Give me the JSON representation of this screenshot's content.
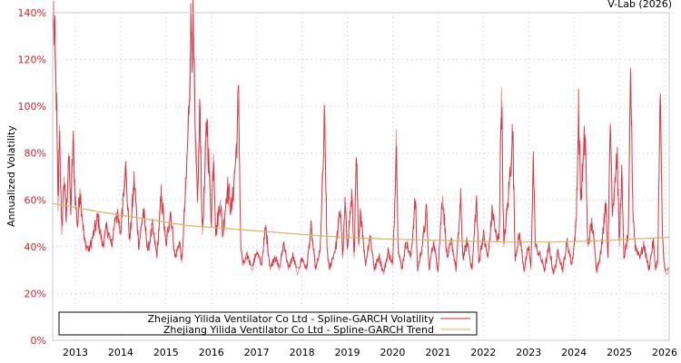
{
  "credit": "V-Lab (2026)",
  "chart_data": {
    "type": "line",
    "title": "",
    "xlabel": "",
    "ylabel": "Annualized Volatility",
    "ylim": [
      0,
      140
    ],
    "y_ticks": [
      "0%",
      "20%",
      "40%",
      "60%",
      "80%",
      "100%",
      "120%",
      "140%"
    ],
    "y_tick_values": [
      0,
      20,
      40,
      60,
      80,
      100,
      120,
      140
    ],
    "x_ticks": [
      "2013",
      "2014",
      "2015",
      "2016",
      "2017",
      "2018",
      "2019",
      "2020",
      "2021",
      "2022",
      "2023",
      "2024",
      "2025",
      "2026"
    ],
    "xlim": [
      2012.5,
      2026.1
    ],
    "grid": true,
    "legend_position": "bottom-left inside",
    "series": [
      {
        "name": "Zhejiang Yilida Ventilator Co Ltd - Spline-GARCH Volatility",
        "color": "#d62030",
        "anchors": [
          [
            2012.52,
            137
          ],
          [
            2012.55,
            120
          ],
          [
            2012.58,
            105
          ],
          [
            2012.62,
            55
          ],
          [
            2012.65,
            92
          ],
          [
            2012.7,
            45
          ],
          [
            2012.75,
            70
          ],
          [
            2012.8,
            50
          ],
          [
            2012.85,
            80
          ],
          [
            2012.9,
            55
          ],
          [
            2012.95,
            85
          ],
          [
            2013.0,
            60
          ],
          [
            2013.05,
            48
          ],
          [
            2013.1,
            65
          ],
          [
            2013.2,
            42
          ],
          [
            2013.3,
            38
          ],
          [
            2013.4,
            45
          ],
          [
            2013.5,
            52
          ],
          [
            2013.6,
            40
          ],
          [
            2013.7,
            48
          ],
          [
            2013.8,
            40
          ],
          [
            2013.9,
            55
          ],
          [
            2014.0,
            45
          ],
          [
            2014.1,
            75
          ],
          [
            2014.2,
            42
          ],
          [
            2014.3,
            68
          ],
          [
            2014.4,
            40
          ],
          [
            2014.5,
            55
          ],
          [
            2014.6,
            38
          ],
          [
            2014.7,
            48
          ],
          [
            2014.8,
            36
          ],
          [
            2014.9,
            62
          ],
          [
            2015.0,
            40
          ],
          [
            2015.1,
            55
          ],
          [
            2015.2,
            35
          ],
          [
            2015.3,
            42
          ],
          [
            2015.35,
            33
          ],
          [
            2015.45,
            70
          ],
          [
            2015.5,
            95
          ],
          [
            2015.55,
            132
          ],
          [
            2015.6,
            130
          ],
          [
            2015.65,
            80
          ],
          [
            2015.7,
            60
          ],
          [
            2015.75,
            100
          ],
          [
            2015.8,
            45
          ],
          [
            2015.85,
            65
          ],
          [
            2015.9,
            95
          ],
          [
            2016.0,
            50
          ],
          [
            2016.05,
            80
          ],
          [
            2016.1,
            45
          ],
          [
            2016.2,
            60
          ],
          [
            2016.25,
            44
          ],
          [
            2016.35,
            65
          ],
          [
            2016.45,
            55
          ],
          [
            2016.55,
            80
          ],
          [
            2016.6,
            103
          ],
          [
            2016.65,
            40
          ],
          [
            2016.7,
            32
          ],
          [
            2016.8,
            36
          ],
          [
            2016.9,
            30
          ],
          [
            2017.0,
            38
          ],
          [
            2017.1,
            32
          ],
          [
            2017.2,
            48
          ],
          [
            2017.3,
            30
          ],
          [
            2017.4,
            36
          ],
          [
            2017.5,
            30
          ],
          [
            2017.6,
            42
          ],
          [
            2017.7,
            30
          ],
          [
            2017.8,
            36
          ],
          [
            2017.9,
            28
          ],
          [
            2018.0,
            35
          ],
          [
            2018.1,
            30
          ],
          [
            2018.2,
            48
          ],
          [
            2018.3,
            30
          ],
          [
            2018.4,
            38
          ],
          [
            2018.5,
            93
          ],
          [
            2018.55,
            40
          ],
          [
            2018.6,
            30
          ],
          [
            2018.75,
            40
          ],
          [
            2018.85,
            56
          ],
          [
            2018.9,
            35
          ],
          [
            2018.95,
            58
          ],
          [
            2019.0,
            40
          ],
          [
            2019.1,
            62
          ],
          [
            2019.15,
            35
          ],
          [
            2019.2,
            78
          ],
          [
            2019.25,
            40
          ],
          [
            2019.3,
            55
          ],
          [
            2019.4,
            32
          ],
          [
            2019.5,
            45
          ],
          [
            2019.6,
            30
          ],
          [
            2019.7,
            36
          ],
          [
            2019.8,
            28
          ],
          [
            2019.9,
            38
          ],
          [
            2020.0,
            32
          ],
          [
            2020.05,
            60
          ],
          [
            2020.08,
            90
          ],
          [
            2020.12,
            40
          ],
          [
            2020.2,
            30
          ],
          [
            2020.3,
            42
          ],
          [
            2020.4,
            35
          ],
          [
            2020.5,
            60
          ],
          [
            2020.55,
            30
          ],
          [
            2020.65,
            40
          ],
          [
            2020.75,
            55
          ],
          [
            2020.8,
            30
          ],
          [
            2020.9,
            42
          ],
          [
            2021.0,
            30
          ],
          [
            2021.1,
            62
          ],
          [
            2021.2,
            35
          ],
          [
            2021.3,
            42
          ],
          [
            2021.4,
            30
          ],
          [
            2021.5,
            60
          ],
          [
            2021.55,
            35
          ],
          [
            2021.65,
            42
          ],
          [
            2021.75,
            30
          ],
          [
            2021.85,
            60
          ],
          [
            2021.9,
            33
          ],
          [
            2022.0,
            45
          ],
          [
            2022.1,
            35
          ],
          [
            2022.2,
            55
          ],
          [
            2022.3,
            42
          ],
          [
            2022.35,
            45
          ],
          [
            2022.4,
            108
          ],
          [
            2022.45,
            40
          ],
          [
            2022.55,
            60
          ],
          [
            2022.65,
            88
          ],
          [
            2022.7,
            35
          ],
          [
            2022.8,
            45
          ],
          [
            2022.9,
            30
          ],
          [
            2023.0,
            40
          ],
          [
            2023.05,
            30
          ],
          [
            2023.1,
            78
          ],
          [
            2023.15,
            40
          ],
          [
            2023.25,
            36
          ],
          [
            2023.35,
            30
          ],
          [
            2023.45,
            40
          ],
          [
            2023.55,
            28
          ],
          [
            2023.65,
            38
          ],
          [
            2023.75,
            30
          ],
          [
            2023.85,
            42
          ],
          [
            2023.95,
            32
          ],
          [
            2024.0,
            40
          ],
          [
            2024.05,
            50
          ],
          [
            2024.1,
            98
          ],
          [
            2024.15,
            60
          ],
          [
            2024.25,
            88
          ],
          [
            2024.3,
            40
          ],
          [
            2024.4,
            50
          ],
          [
            2024.5,
            30
          ],
          [
            2024.6,
            38
          ],
          [
            2024.7,
            60
          ],
          [
            2024.75,
            35
          ],
          [
            2024.8,
            93
          ],
          [
            2024.85,
            55
          ],
          [
            2024.95,
            80
          ],
          [
            2025.0,
            40
          ],
          [
            2025.05,
            72
          ],
          [
            2025.1,
            35
          ],
          [
            2025.2,
            45
          ],
          [
            2025.25,
            114
          ],
          [
            2025.3,
            55
          ],
          [
            2025.35,
            40
          ],
          [
            2025.45,
            36
          ],
          [
            2025.55,
            40
          ],
          [
            2025.65,
            30
          ],
          [
            2025.75,
            42
          ],
          [
            2025.8,
            30
          ],
          [
            2025.85,
            35
          ],
          [
            2025.9,
            103
          ],
          [
            2025.95,
            45
          ],
          [
            2026.0,
            30
          ],
          [
            2026.05,
            28
          ],
          [
            2026.1,
            30
          ]
        ]
      },
      {
        "name": "Zhejiang Yilida Ventilator Co Ltd - Spline-GARCH Trend",
        "color": "#d9b25c",
        "anchors": [
          [
            2012.5,
            58.5
          ],
          [
            2013.5,
            55
          ],
          [
            2014.5,
            52
          ],
          [
            2015.5,
            49
          ],
          [
            2016.5,
            47.5
          ],
          [
            2017.5,
            46
          ],
          [
            2018.5,
            44.5
          ],
          [
            2019.5,
            43.5
          ],
          [
            2020.5,
            43
          ],
          [
            2021.5,
            42.5
          ],
          [
            2022.5,
            42
          ],
          [
            2023.5,
            42
          ],
          [
            2024.5,
            42.5
          ],
          [
            2025.5,
            43.5
          ],
          [
            2026.1,
            44
          ]
        ]
      }
    ]
  },
  "legend": {
    "items": [
      {
        "label": "Zhejiang Yilida Ventilator Co Ltd - Spline-GARCH Volatility",
        "color": "#d62030"
      },
      {
        "label": "Zhejiang Yilida Ventilator Co Ltd - Spline-GARCH Trend",
        "color": "#d9b25c"
      }
    ]
  },
  "colors": {
    "tick_label": "#cc2233",
    "axis": "#c8c8c8",
    "grid": "#c8c8c8"
  }
}
